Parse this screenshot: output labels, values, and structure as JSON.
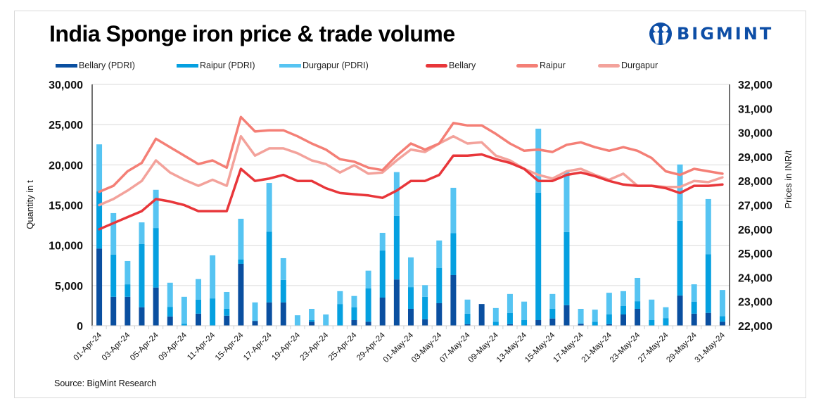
{
  "header": {
    "title": "India Sponge iron price & trade volume",
    "logo_text": "BIGMINT",
    "logo_icon": "bigmint-people-icon"
  },
  "footer": {
    "source": "Source: BigMint Research"
  },
  "colors": {
    "bellary_pdri": "#0a4fa0",
    "raipur_pdri": "#05a0e0",
    "durgapur_pdri": "#56c4f2",
    "bellary_price": "#e8363a",
    "raipur_price": "#f47f76",
    "durgapur_price": "#f3a29b",
    "logo": "#0d4ea6"
  },
  "legend": [
    {
      "label": "Bellary (PDRI)",
      "kind": "bar",
      "color_key": "bellary_pdri"
    },
    {
      "label": "Raipur (PDRI)",
      "kind": "bar",
      "color_key": "raipur_pdri"
    },
    {
      "label": "Durgapur (PDRI)",
      "kind": "bar",
      "color_key": "durgapur_pdri"
    },
    {
      "label": "Bellary",
      "kind": "line",
      "color_key": "bellary_price"
    },
    {
      "label": "Raipur",
      "kind": "line",
      "color_key": "raipur_price"
    },
    {
      "label": "Durgapur",
      "kind": "line",
      "color_key": "durgapur_price"
    }
  ],
  "chart_data": {
    "type": "bar+line",
    "title": "India Sponge iron price & trade volume",
    "ylabel": "Quantity in t",
    "y2label": "Prices in INR/t",
    "ylim": [
      0,
      30000
    ],
    "y_ticks": [
      "0",
      "5,000",
      "10,000",
      "15,000",
      "20,000",
      "25,000",
      "30,000"
    ],
    "y2lim": [
      22000,
      32000
    ],
    "y2_ticks": [
      "22,000",
      "23,000",
      "24,000",
      "25,000",
      "26,000",
      "27,000",
      "28,000",
      "29,000",
      "30,000",
      "31,000",
      "32,000"
    ],
    "grid": true,
    "legend_position": "top",
    "categories": [
      "01-Apr-24",
      "",
      "03-Apr-24",
      "",
      "05-Apr-24",
      "",
      "09-Apr-24",
      "",
      "11-Apr-24",
      "",
      "15-Apr-24",
      "",
      "17-Apr-24",
      "",
      "19-Apr-24",
      "",
      "23-Apr-24",
      "",
      "25-Apr-24",
      "",
      "29-Apr-24",
      "",
      "01-May-24",
      "",
      "03-May-24",
      "",
      "07-May-24",
      "",
      "09-May-24",
      "",
      "13-May-24",
      "",
      "15-May-24",
      "",
      "17-May-24",
      "",
      "21-May-24",
      "",
      "23-May-24",
      "",
      "27-May-24",
      "",
      "29-May-24",
      "",
      "31-May-24"
    ],
    "bar_series": [
      {
        "name": "Bellary (PDRI)",
        "stack": "volume",
        "axis": "left",
        "values": [
          9600,
          3600,
          3600,
          2300,
          4750,
          1150,
          0,
          1500,
          0,
          1250,
          7700,
          600,
          2900,
          2900,
          0,
          500,
          0,
          0,
          700,
          500,
          3500,
          5750,
          2100,
          800,
          2800,
          6300,
          200,
          2700,
          0,
          200,
          0,
          700,
          900,
          2550,
          250,
          0,
          200,
          1400,
          2100,
          0,
          0,
          3750,
          1500,
          1600,
          500
        ]
      },
      {
        "name": "Raipur (PDRI)",
        "stack": "volume",
        "axis": "left",
        "values": [
          7100,
          5250,
          1550,
          7850,
          7400,
          1200,
          250,
          1750,
          3400,
          850,
          550,
          0,
          8800,
          2800,
          0,
          200,
          0,
          2700,
          1600,
          4150,
          5850,
          7900,
          2700,
          2800,
          4400,
          5200,
          1300,
          0,
          500,
          1400,
          700,
          15850,
          1200,
          9100,
          0,
          500,
          1200,
          1050,
          950,
          700,
          950,
          9300,
          1500,
          7300,
          700
        ]
      },
      {
        "name": "Durgapur (PDRI)",
        "stack": "volume",
        "axis": "left",
        "values": [
          5850,
          5150,
          2900,
          2700,
          4750,
          3000,
          3350,
          2550,
          5350,
          2100,
          5050,
          2300,
          6050,
          2700,
          1300,
          1400,
          1400,
          1600,
          1400,
          2200,
          2200,
          5450,
          3700,
          1450,
          3400,
          5650,
          1750,
          0,
          1700,
          2350,
          2300,
          7950,
          1850,
          7450,
          1850,
          1500,
          2700,
          1850,
          2900,
          2550,
          1350,
          7000,
          2150,
          6850,
          3250
        ]
      }
    ],
    "line_series": [
      {
        "name": "Bellary",
        "axis": "right",
        "values": [
          26000,
          26250,
          26500,
          26750,
          27250,
          27150,
          27000,
          26750,
          26750,
          26750,
          28500,
          28000,
          28100,
          28250,
          28000,
          28000,
          27700,
          27500,
          27450,
          27400,
          27300,
          27600,
          28000,
          28000,
          28250,
          29050,
          29050,
          29100,
          28900,
          28750,
          28500,
          28000,
          28000,
          28250,
          28350,
          28200,
          28000,
          27850,
          27800,
          27800,
          27700,
          27500,
          27800,
          27800,
          27850
        ]
      },
      {
        "name": "Raipur",
        "axis": "right",
        "values": [
          27550,
          27800,
          28400,
          28750,
          29750,
          29400,
          29050,
          28700,
          28850,
          28550,
          30650,
          30050,
          30100,
          30100,
          29850,
          29550,
          29300,
          28900,
          28800,
          28550,
          28450,
          29050,
          29550,
          29300,
          29550,
          30400,
          30300,
          30300,
          29950,
          29550,
          29250,
          29300,
          29200,
          29500,
          29600,
          29400,
          29250,
          29400,
          29250,
          28950,
          28400,
          28250,
          28500,
          28400,
          28300
        ]
      },
      {
        "name": "Durgapur",
        "axis": "right",
        "values": [
          27000,
          27250,
          27600,
          28000,
          28850,
          28350,
          28050,
          27800,
          28050,
          27800,
          29850,
          29050,
          29350,
          29350,
          29150,
          28850,
          28700,
          28350,
          28650,
          28300,
          28350,
          28850,
          29300,
          29200,
          29550,
          29850,
          29550,
          29600,
          29050,
          28850,
          28500,
          28250,
          28100,
          28400,
          28500,
          28250,
          28050,
          28300,
          27800,
          27800,
          27750,
          27750,
          28000,
          27950,
          28150
        ]
      }
    ]
  }
}
